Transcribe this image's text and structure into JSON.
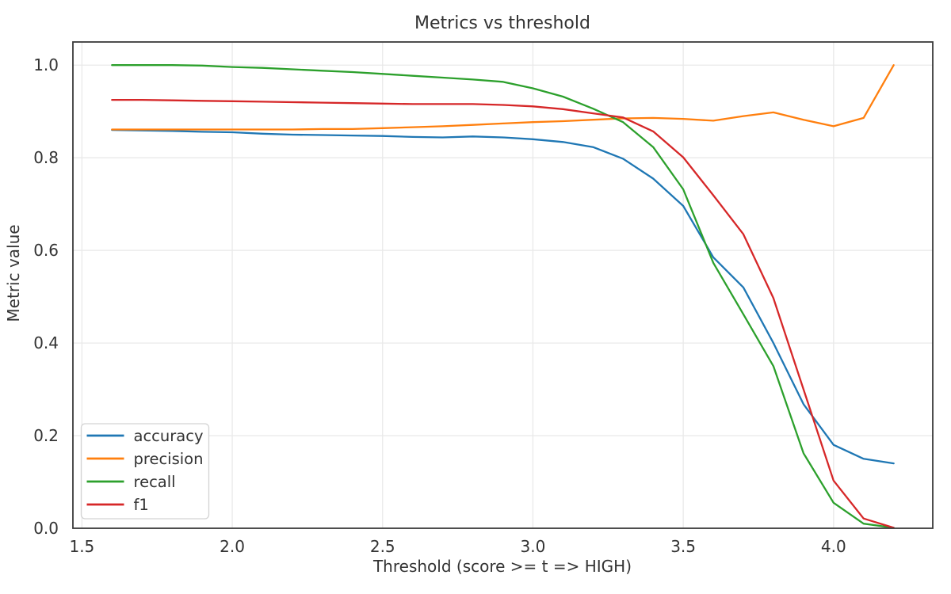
{
  "chart_data": {
    "type": "line",
    "title": "Metrics vs threshold",
    "xlabel": "Threshold (score >= t => HIGH)",
    "ylabel": "Metric value",
    "xlim": [
      1.47,
      4.33
    ],
    "ylim": [
      0,
      1.05
    ],
    "grid": true,
    "legend_position": "lower left",
    "x_ticks": [
      1.5,
      2.0,
      2.5,
      3.0,
      3.5,
      4.0
    ],
    "x_tick_labels": [
      "1.5",
      "2.0",
      "2.5",
      "3.0",
      "3.5",
      "4.0"
    ],
    "y_ticks": [
      0.0,
      0.2,
      0.4,
      0.6,
      0.8,
      1.0
    ],
    "y_tick_labels": [
      "0.0",
      "0.2",
      "0.4",
      "0.6",
      "0.8",
      "1.0"
    ],
    "x": [
      1.6,
      1.7,
      1.8,
      1.9,
      2.0,
      2.1,
      2.2,
      2.3,
      2.4,
      2.5,
      2.6,
      2.7,
      2.8,
      2.9,
      3.0,
      3.1,
      3.2,
      3.3,
      3.4,
      3.5,
      3.6,
      3.7,
      3.8,
      3.9,
      4.0,
      4.1,
      4.2
    ],
    "series": [
      {
        "name": "accuracy",
        "color": "#1f77b4",
        "values": [
          0.86,
          0.859,
          0.858,
          0.856,
          0.855,
          0.852,
          0.85,
          0.849,
          0.848,
          0.847,
          0.845,
          0.844,
          0.846,
          0.844,
          0.84,
          0.834,
          0.823,
          0.798,
          0.755,
          0.696,
          0.585,
          0.52,
          0.4,
          0.268,
          0.18,
          0.15,
          0.14
        ]
      },
      {
        "name": "precision",
        "color": "#ff7f0e",
        "values": [
          0.861,
          0.861,
          0.861,
          0.861,
          0.861,
          0.861,
          0.861,
          0.862,
          0.862,
          0.864,
          0.866,
          0.868,
          0.871,
          0.874,
          0.877,
          0.879,
          0.882,
          0.885,
          0.886,
          0.884,
          0.88,
          0.89,
          0.898,
          0.882,
          0.868,
          0.886,
          1.0
        ]
      },
      {
        "name": "recall",
        "color": "#2ca02c",
        "values": [
          1.0,
          1.0,
          1.0,
          0.999,
          0.996,
          0.994,
          0.991,
          0.988,
          0.985,
          0.981,
          0.977,
          0.973,
          0.969,
          0.964,
          0.95,
          0.932,
          0.906,
          0.877,
          0.823,
          0.732,
          0.573,
          0.462,
          0.35,
          0.162,
          0.055,
          0.01,
          0.001
        ]
      },
      {
        "name": "f1",
        "color": "#d62728",
        "values": [
          0.925,
          0.925,
          0.924,
          0.923,
          0.922,
          0.921,
          0.92,
          0.919,
          0.918,
          0.917,
          0.916,
          0.916,
          0.916,
          0.914,
          0.911,
          0.905,
          0.896,
          0.887,
          0.857,
          0.801,
          0.719,
          0.635,
          0.497,
          0.3,
          0.103,
          0.021,
          0.001
        ]
      }
    ],
    "style": {
      "grid_color": "#e9e9e9",
      "spine_color": "#3a3a3a",
      "text_color": "#333333",
      "legend_border_color": "#d3d3d3",
      "legend_bg_color": "#ffffff",
      "line_width": 2.3
    }
  }
}
